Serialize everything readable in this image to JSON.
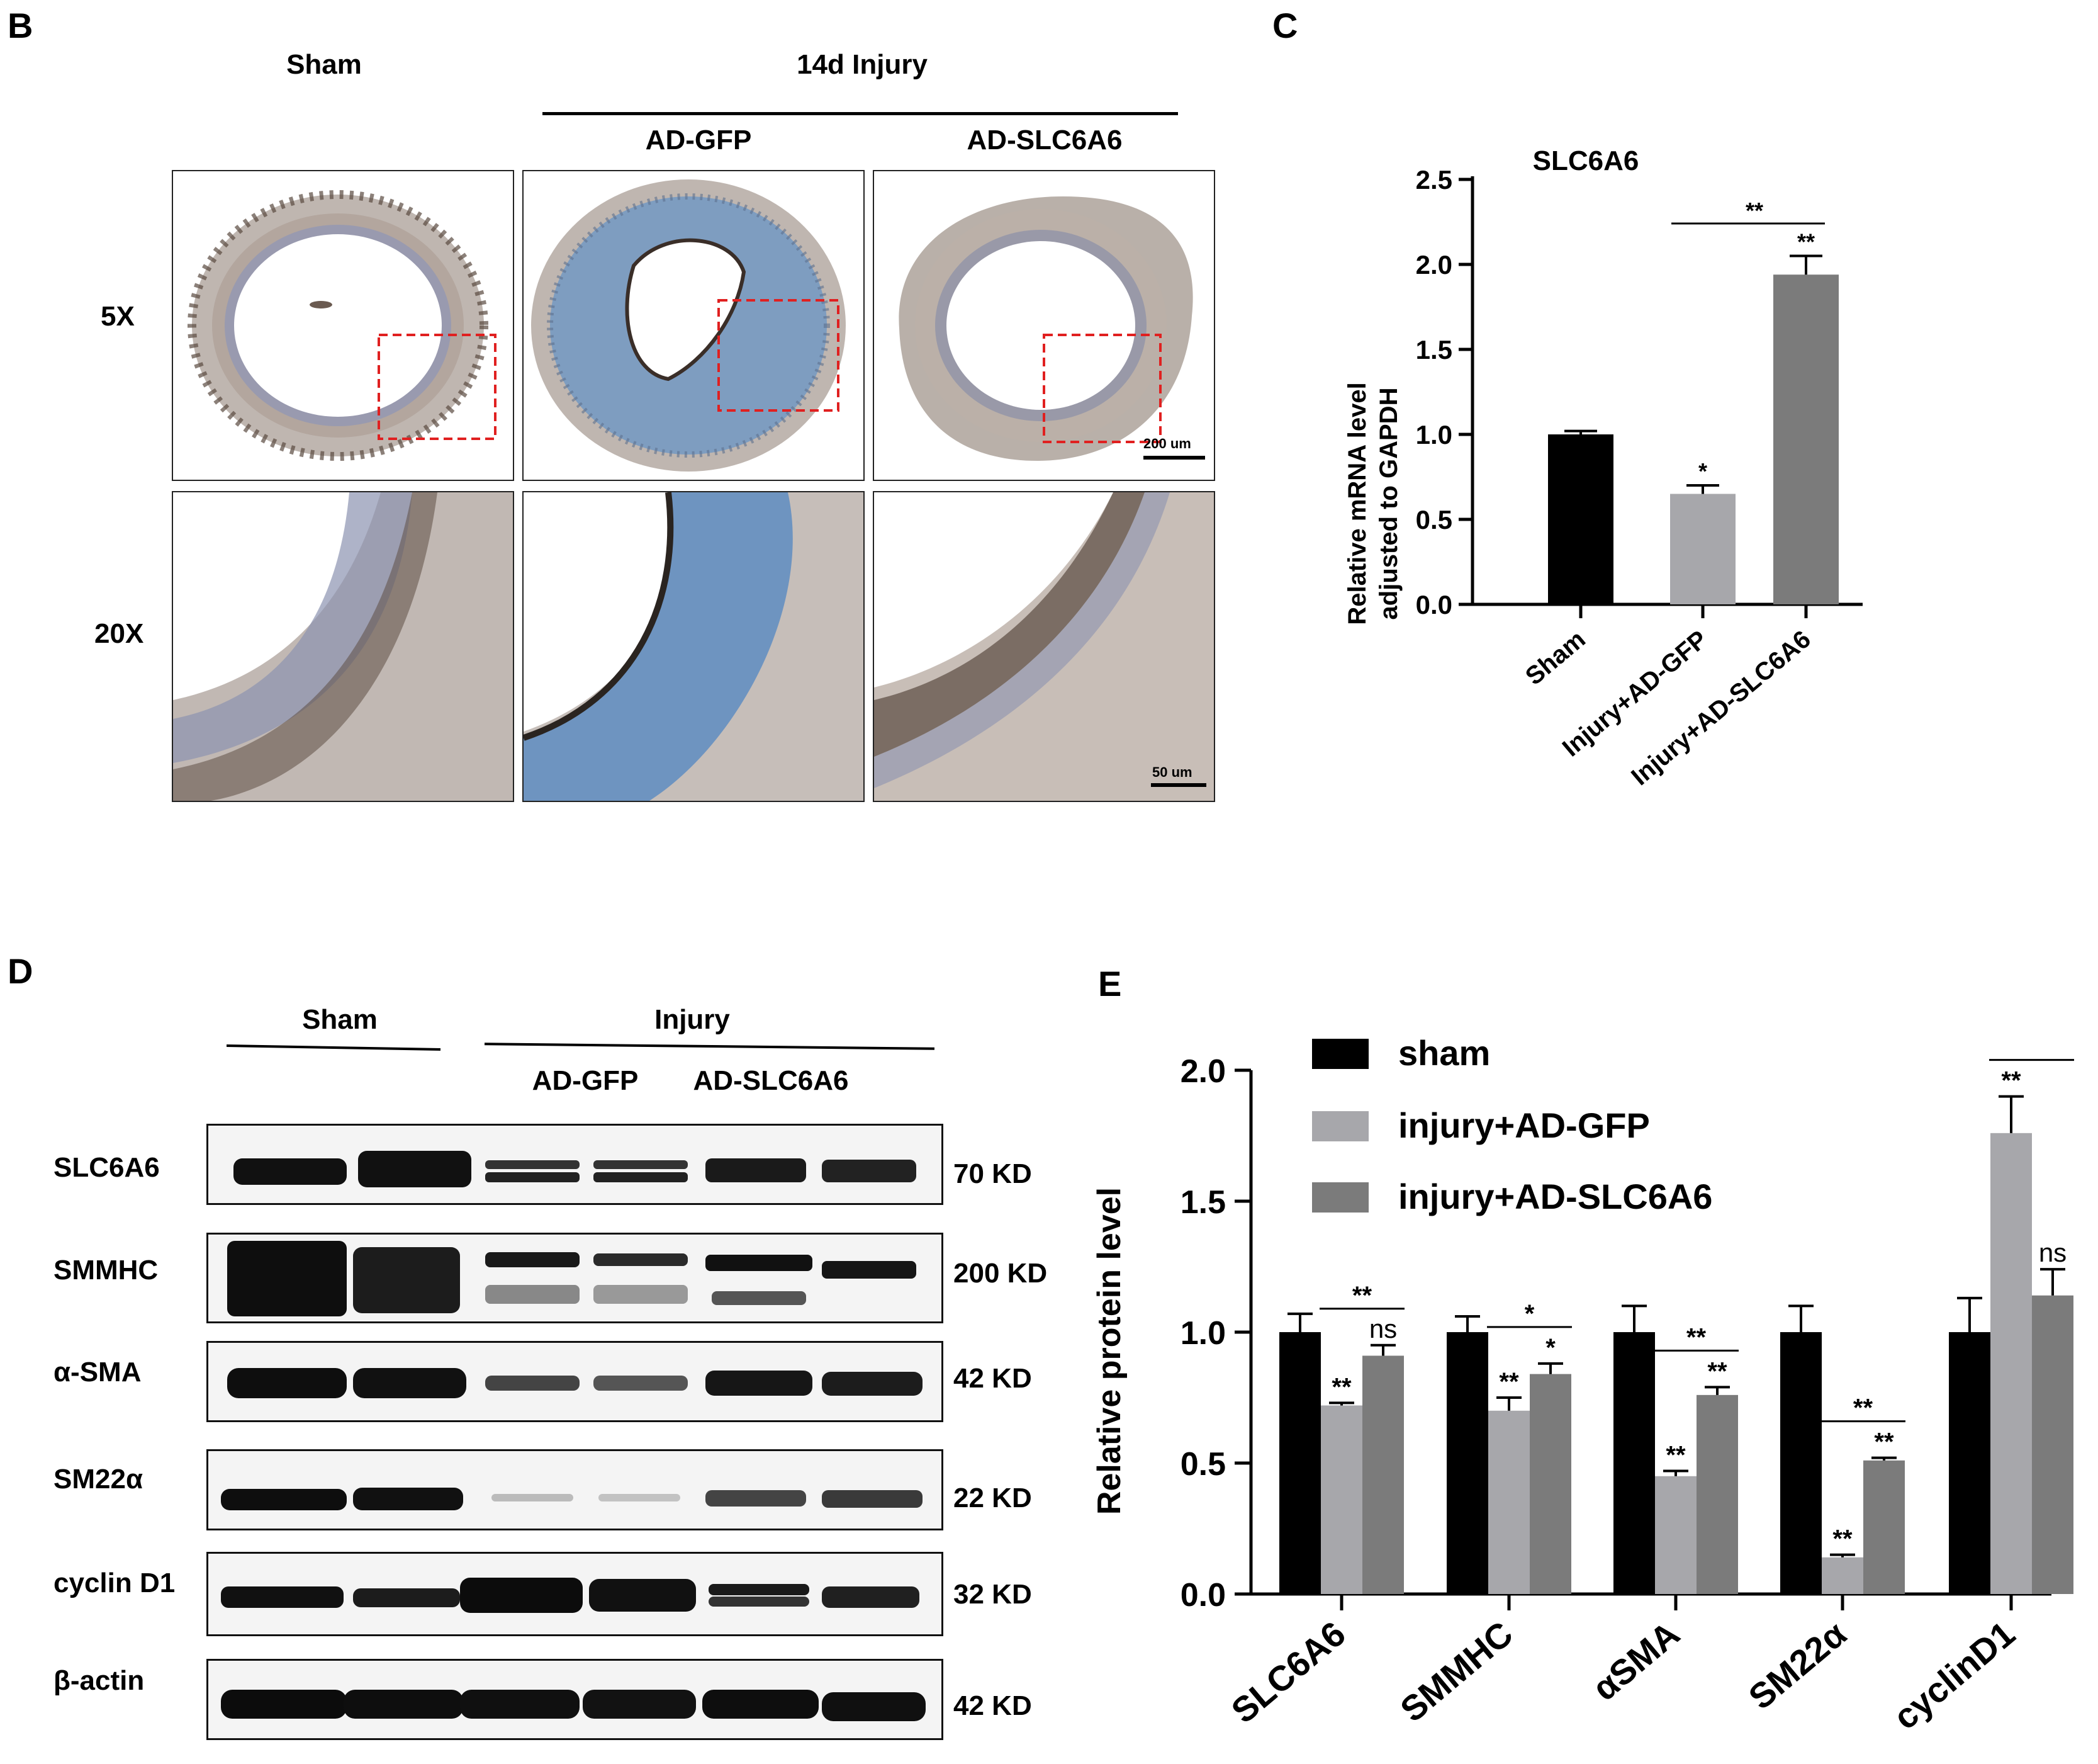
{
  "panel_b": {
    "label": "B",
    "sham": "Sham",
    "injury": "14d Injury",
    "col_gfp": "AD-GFP",
    "col_slc": "AD-SLC6A6",
    "row_5x": "5X",
    "row_20x": "20X",
    "scale_5x": "200 um",
    "scale_20x": "50 um"
  },
  "panel_c": {
    "label": "C",
    "sig_top": "**"
  },
  "panel_d": {
    "label": "D",
    "sham": "Sham",
    "injury": "Injury",
    "gfp": "AD-GFP",
    "slc": "AD-SLC6A6",
    "rows": [
      {
        "name": "SLC6A6",
        "kd": "70 KD"
      },
      {
        "name": "SMMHC",
        "kd": "200 KD"
      },
      {
        "name": "α-SMA",
        "kd": "42 KD"
      },
      {
        "name": "SM22α",
        "kd": "22 KD"
      },
      {
        "name": "cyclin D1",
        "kd": "32 KD"
      },
      {
        "name": "β-actin",
        "kd": "42 KD"
      }
    ]
  },
  "panel_e": {
    "label": "E",
    "legend": [
      "sham",
      "injury+AD-GFP",
      "injury+AD-SLC6A6"
    ]
  },
  "colors": {
    "black": "#000000",
    "light_gray": "#a7a7ab",
    "dark_gray": "#7b7b7b",
    "red_box": "#e02020"
  },
  "chart_data": [
    {
      "type": "bar",
      "title": "SLC6A6",
      "ylabel": "Relative  mRNA level adjusted to GAPDH",
      "ylim": [
        0,
        2.5
      ],
      "yticks": [
        "0.0",
        "0.5",
        "1.0",
        "1.5",
        "2.0",
        "2.5"
      ],
      "categories": [
        "Sham",
        "Injury+AD-GFP",
        "Injury+AD-SLC6A6"
      ],
      "values": [
        1.0,
        0.65,
        1.94
      ],
      "errors": [
        0.02,
        0.05,
        0.11
      ],
      "colors": [
        "#000000",
        "#a7a7ab",
        "#7b7b7b"
      ],
      "significance": [
        "",
        "*",
        "**"
      ],
      "bracket": {
        "from": 1,
        "to": 2,
        "label": "**"
      }
    },
    {
      "type": "bar",
      "ylabel": "Relative  protein level",
      "ylim": [
        0,
        2.0
      ],
      "yticks": [
        "0.0",
        "0.5",
        "1.0",
        "1.5",
        "2.0"
      ],
      "categories": [
        "SLC6A6",
        "SMMHC",
        "αSMA",
        "SM22α",
        "cyclinD1"
      ],
      "series": [
        {
          "name": "sham",
          "color": "#000000",
          "values": [
            1.0,
            1.0,
            1.0,
            1.0,
            1.0
          ],
          "errors": [
            0.07,
            0.06,
            0.1,
            0.1,
            0.13
          ],
          "labels": [
            "",
            "",
            "",
            "",
            ""
          ]
        },
        {
          "name": "injury+AD-GFP",
          "color": "#a7a7ab",
          "values": [
            0.72,
            0.7,
            0.45,
            0.14,
            1.76
          ],
          "errors": [
            0.01,
            0.05,
            0.02,
            0.01,
            0.14
          ],
          "labels": [
            "**",
            "**",
            "**",
            "**",
            "**"
          ]
        },
        {
          "name": "injury+AD-SLC6A6",
          "color": "#7b7b7b",
          "values": [
            0.91,
            0.84,
            0.76,
            0.51,
            1.14
          ],
          "errors": [
            0.04,
            0.04,
            0.03,
            0.01,
            0.1
          ],
          "labels": [
            "ns",
            "*",
            "**",
            "**",
            "ns"
          ]
        }
      ],
      "brackets": [
        "**",
        "*",
        "**",
        "**",
        "**"
      ]
    }
  ]
}
